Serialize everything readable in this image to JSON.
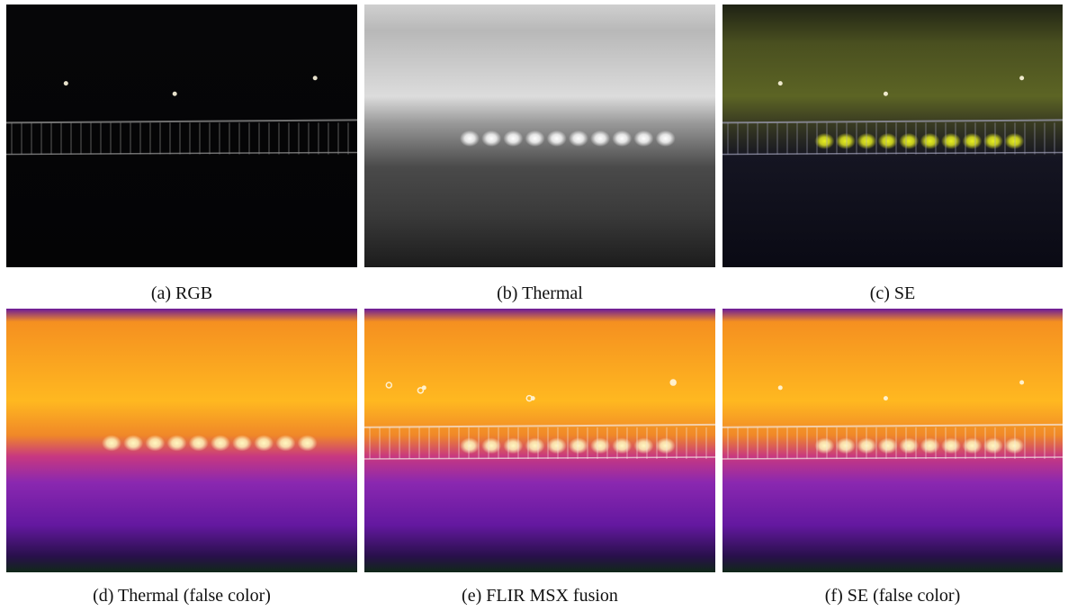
{
  "panels": [
    {
      "caption": "(a) RGB"
    },
    {
      "caption": "(b) Thermal"
    },
    {
      "caption": "(c) SE"
    },
    {
      "caption": "(d) Thermal (false color)"
    },
    {
      "caption": "(e) FLIR MSX fusion"
    },
    {
      "caption": "(f) SE (false color)"
    }
  ]
}
